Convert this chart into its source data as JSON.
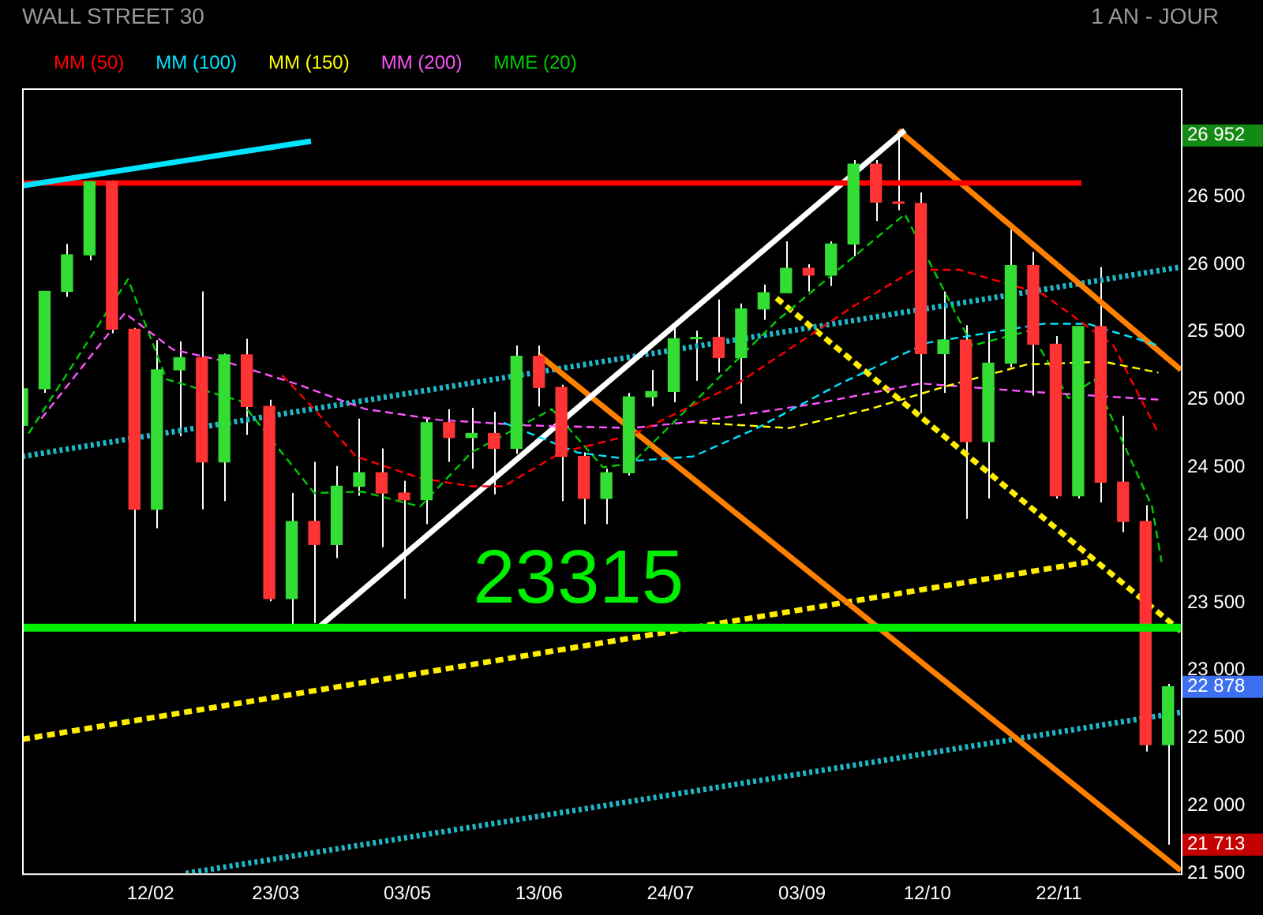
{
  "chart_data": {
    "type": "candlestick",
    "title": "WALL STREET 30",
    "subtitle": "1 AN - JOUR",
    "x": [
      "--01-03",
      "--01-10",
      "--01-17",
      "--01-24",
      "--01-31",
      "--02-07",
      "--02-14",
      "--02-21",
      "--02-28",
      "--03-07",
      "--03-14",
      "--03-21",
      "--03-28",
      "--04-04",
      "--04-11",
      "--04-18",
      "--04-25",
      "--05-02",
      "--05-09",
      "--05-16",
      "--05-23",
      "--05-30",
      "--06-06",
      "--06-13",
      "--06-20",
      "--06-27",
      "--07-04",
      "--07-11",
      "--07-18",
      "--07-25",
      "--08-01",
      "--08-08",
      "--08-15",
      "--08-22",
      "--08-29",
      "--09-05",
      "--09-12",
      "--09-19",
      "--09-26",
      "--10-03",
      "--10-10",
      "--10-17",
      "--10-24",
      "--10-31",
      "--11-07",
      "--11-14",
      "--11-21",
      "--11-28",
      "--12-05",
      "--12-12",
      "--12-19",
      "--12-26"
    ],
    "ohlc": [
      [
        24810,
        25100,
        24740,
        25080
      ],
      [
        25080,
        25800,
        25050,
        25800
      ],
      [
        25800,
        26150,
        25760,
        26070
      ],
      [
        26070,
        26620,
        26030,
        26610
      ],
      [
        26610,
        26620,
        25490,
        25520
      ],
      [
        25520,
        25530,
        23360,
        24190
      ],
      [
        24190,
        25440,
        24050,
        25220
      ],
      [
        25220,
        25430,
        24730,
        25310
      ],
      [
        25310,
        25800,
        24190,
        24540
      ],
      [
        24540,
        25340,
        24250,
        25330
      ],
      [
        25330,
        25450,
        24740,
        24950
      ],
      [
        24950,
        25000,
        23510,
        23530
      ],
      [
        23530,
        24310,
        23340,
        24100
      ],
      [
        24100,
        24540,
        23350,
        23930
      ],
      [
        23930,
        24510,
        23830,
        24360
      ],
      [
        24360,
        24860,
        24290,
        24460
      ],
      [
        24460,
        24640,
        23910,
        24310
      ],
      [
        24310,
        24400,
        23530,
        24260
      ],
      [
        24260,
        24870,
        24080,
        24830
      ],
      [
        24830,
        24930,
        24540,
        24720
      ],
      [
        24720,
        24940,
        24490,
        24750
      ],
      [
        24750,
        24910,
        24300,
        24640
      ],
      [
        24640,
        25400,
        24600,
        25320
      ],
      [
        25320,
        25400,
        24950,
        25090
      ],
      [
        25090,
        25110,
        24250,
        24580
      ],
      [
        24580,
        24610,
        24080,
        24270
      ],
      [
        24270,
        24490,
        24080,
        24460
      ],
      [
        24460,
        25050,
        24440,
        25020
      ],
      [
        25020,
        25220,
        24950,
        25060
      ],
      [
        25060,
        25540,
        24980,
        25450
      ],
      [
        25450,
        25510,
        25140,
        25460
      ],
      [
        25460,
        25740,
        25200,
        25310
      ],
      [
        25310,
        25710,
        24970,
        25670
      ],
      [
        25670,
        25850,
        25590,
        25790
      ],
      [
        25790,
        26170,
        25790,
        25970
      ],
      [
        25970,
        26000,
        25800,
        25920
      ],
      [
        25920,
        26170,
        25840,
        26150
      ],
      [
        26150,
        26770,
        26060,
        26740
      ],
      [
        26740,
        26770,
        26320,
        26460
      ],
      [
        26460,
        26952,
        26400,
        26450
      ],
      [
        26450,
        26530,
        24900,
        25340
      ],
      [
        25340,
        25800,
        25050,
        25440
      ],
      [
        25440,
        25550,
        24120,
        24690
      ],
      [
        24690,
        25500,
        24270,
        25270
      ],
      [
        25270,
        26280,
        25240,
        25990
      ],
      [
        25990,
        26090,
        25030,
        25410
      ],
      [
        25410,
        25470,
        24270,
        24290
      ],
      [
        24290,
        25540,
        24270,
        25540
      ],
      [
        25540,
        25980,
        24240,
        24390
      ],
      [
        24390,
        24880,
        24020,
        24100
      ],
      [
        24100,
        24220,
        22400,
        22450
      ],
      [
        22450,
        22900,
        21713,
        22878
      ]
    ],
    "series": [
      {
        "type": "line",
        "name": "MM (50)",
        "color": "#ff0000",
        "line_style": "dashed",
        "x": [
          "--03-25",
          "--04-04",
          "--04-17",
          "--05-07",
          "--05-23",
          "--06-02",
          "--06-20",
          "--07-12",
          "--08-14",
          "--09-19",
          "--10-08",
          "--10-22",
          "--11-17",
          "--12-09",
          "--12-23"
        ],
        "values": [
          25180,
          24930,
          24580,
          24420,
          24360,
          24360,
          24610,
          24740,
          25120,
          25690,
          25960,
          25960,
          25780,
          25400,
          24750
        ]
      },
      {
        "type": "line",
        "name": "MM (100)",
        "color": "#00e5ff",
        "line_style": "dashed",
        "x": [
          "--06-02",
          "--06-25",
          "--07-14",
          "--07-31",
          "--08-20",
          "--09-15",
          "--10-12",
          "--11-17",
          "--12-01",
          "--12-23"
        ],
        "values": [
          24830,
          24610,
          24550,
          24580,
          24790,
          25120,
          25420,
          25560,
          25560,
          25400
        ]
      },
      {
        "type": "line",
        "name": "MM (150)",
        "color": "#ffff00",
        "line_style": "dashed",
        "x": [
          "--08-02",
          "--08-30",
          "--09-24",
          "--10-18",
          "--11-12",
          "--12-06",
          "--12-23"
        ],
        "values": [
          24830,
          24790,
          24930,
          25100,
          25260,
          25280,
          25200
        ]
      },
      {
        "type": "line",
        "name": "MM (200)",
        "color": "#ff55ff",
        "line_style": "dashed",
        "x": [
          "--01-09",
          "--02-04",
          "--02-19",
          "--03-06",
          "--03-29",
          "--04-20",
          "--05-13",
          "--06-09",
          "--07-12",
          "--08-05",
          "--09-07",
          "--10-10",
          "--11-12",
          "--12-23"
        ],
        "values": [
          24860,
          25640,
          25370,
          25290,
          25120,
          24930,
          24850,
          24810,
          24790,
          24850,
          24970,
          25120,
          25060,
          25000
        ]
      },
      {
        "type": "line",
        "name": "MME (20)",
        "color": "#00cc00",
        "line_style": "dashed",
        "x": [
          "--01-05",
          "--02-05",
          "--02-17",
          "--03-12",
          "--04-04",
          "--04-19",
          "--05-07",
          "--05-23",
          "--06-17",
          "--07-03",
          "--07-12",
          "--08-26",
          "--10-05",
          "--10-26",
          "--11-13",
          "--11-25",
          "--12-03",
          "--12-21",
          "--12-24"
        ],
        "values": [
          24750,
          25890,
          25150,
          24990,
          24310,
          24320,
          24210,
          24610,
          24930,
          24500,
          24530,
          25580,
          26370,
          25400,
          25510,
          25010,
          25150,
          24210,
          23800
        ]
      },
      {
        "type": "line",
        "color": "#00e5ff",
        "line_style": "solid",
        "x": [
          "--01-03",
          "--04-03"
        ],
        "values": [
          26580,
          26910
        ]
      },
      {
        "type": "line",
        "color": "#ff0000",
        "line_style": "solid",
        "x": [
          "--01-03",
          "--11-29"
        ],
        "values": [
          26600,
          26600
        ]
      },
      {
        "type": "line",
        "color": "#ffffff",
        "line_style": "solid",
        "x": [
          "--04-06",
          "--10-05"
        ],
        "values": [
          23330,
          26990
        ]
      },
      {
        "type": "line",
        "color": "#ff8000",
        "line_style": "solid",
        "x": [
          "--10-03",
          "--12-30"
        ],
        "values": [
          26990,
          25220
        ]
      },
      {
        "type": "line",
        "color": "#ff8000",
        "line_style": "solid",
        "x": [
          "--06-13",
          "--12-30"
        ],
        "values": [
          25330,
          21520
        ]
      },
      {
        "type": "line",
        "color": "#ffee00",
        "line_style": "dashed",
        "x": [
          "--08-26",
          "--12-30"
        ],
        "values": [
          25750,
          23290
        ]
      },
      {
        "type": "line",
        "color": "#ffee00",
        "line_style": "dashed",
        "x": [
          "--01-03",
          "--12-01"
        ],
        "values": [
          22490,
          23800
        ]
      },
      {
        "type": "line",
        "color": "#1fb8c8",
        "line_style": "dotted",
        "x": [
          "--01-03",
          "--12-30"
        ],
        "values": [
          24580,
          25980
        ]
      },
      {
        "type": "line",
        "color": "#1fb8c8",
        "line_style": "dotted",
        "x": [
          "--02-23",
          "--12-30"
        ],
        "values": [
          21500,
          22690
        ]
      }
    ],
    "ref_lines": [
      {
        "axis": "y",
        "value": 23315,
        "label": "23315",
        "color": "#00ee00"
      }
    ],
    "xlim": [
      "--01-03",
      "--12-30"
    ],
    "xticks": [
      {
        "value": "--02-12",
        "label": "12/02"
      },
      {
        "value": "--03-23",
        "label": "23/03"
      },
      {
        "value": "--05-03",
        "label": "03/05"
      },
      {
        "value": "--06-13",
        "label": "13/06"
      },
      {
        "value": "--07-24",
        "label": "24/07"
      },
      {
        "value": "--09-03",
        "label": "03/09"
      },
      {
        "value": "--10-12",
        "label": "12/10"
      },
      {
        "value": "--11-22",
        "label": "22/11"
      }
    ],
    "ylim": [
      21500,
      27300
    ],
    "yticks": [
      {
        "value": 21500,
        "label": "21 500"
      },
      {
        "value": 21713,
        "label": "21 713"
      },
      {
        "value": 22000,
        "label": "22 000"
      },
      {
        "value": 22500,
        "label": "22 500"
      },
      {
        "value": 22878,
        "label": "22 878"
      },
      {
        "value": 23000,
        "label": "23 000"
      },
      {
        "value": 23500,
        "label": "23 500"
      },
      {
        "value": 24000,
        "label": "24 000"
      },
      {
        "value": 24500,
        "label": "24 500"
      },
      {
        "value": 25000,
        "label": "25 000"
      },
      {
        "value": 25500,
        "label": "25 500"
      },
      {
        "value": 26000,
        "label": "26 000"
      },
      {
        "value": 26500,
        "label": "26 500"
      },
      {
        "value": 26952,
        "label": "26 952"
      }
    ],
    "legend": "top left",
    "grid": false,
    "marker": "none"
  }
}
